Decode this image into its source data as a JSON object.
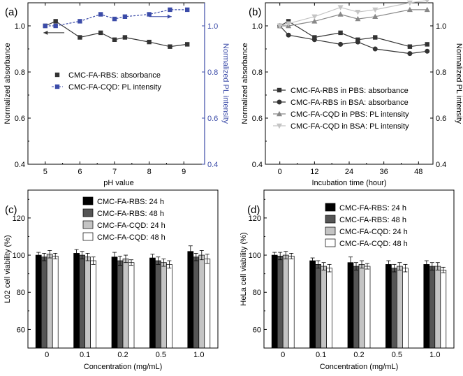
{
  "colors": {
    "axis": "#000000",
    "blue": "#3b4ba8",
    "dark": "#333333",
    "mid": "#5a5a5a",
    "gray": "#888888",
    "light": "#c4c4c4",
    "black_bar": "#000000",
    "darkgray_bar": "#555555",
    "lightgray_bar": "#c4c4c4",
    "white_bar": "#ffffff"
  },
  "chart_data": [
    {
      "id": "a",
      "type": "line",
      "panel_label": "(a)",
      "xlabel": "pH value",
      "ylabel": "Normalized absorbance",
      "ylabel_right": "Normalized PL intensity",
      "xlim": [
        4.5,
        9.6
      ],
      "ylim": [
        0.4,
        1.1
      ],
      "ylim_right": [
        0.4,
        1.1
      ],
      "xticks": [
        5,
        6,
        7,
        8,
        9
      ],
      "yticks": [
        0.4,
        0.6,
        0.8,
        1.0
      ],
      "yticks_right": [
        0.4,
        0.6,
        0.8,
        1.0
      ],
      "ytick_labels": [
        "0.4",
        "0.6",
        "0.8",
        "1.0"
      ],
      "ytick_labels_right": [
        "0.4",
        "0.6",
        "0.8",
        "1.0"
      ],
      "series": [
        {
          "name": "CMC-FA-RBS: absorbance",
          "axis": "left",
          "color": "dark",
          "style": "solid",
          "marker": "square-filled",
          "x": [
            5.0,
            5.3,
            6.0,
            6.6,
            7.0,
            7.3,
            8.0,
            8.6,
            9.1
          ],
          "y": [
            1.0,
            1.02,
            0.95,
            0.97,
            0.94,
            0.95,
            0.93,
            0.91,
            0.92
          ]
        },
        {
          "name": "CMC-FA-CQD: PL intensity",
          "axis": "right",
          "color": "blue",
          "style": "dashed",
          "marker": "square-filled",
          "x": [
            5.0,
            5.3,
            6.0,
            6.6,
            7.0,
            7.3,
            8.0,
            8.6,
            9.1
          ],
          "y": [
            1.0,
            1.0,
            1.02,
            1.05,
            1.03,
            1.04,
            1.05,
            1.07,
            1.07
          ]
        }
      ],
      "legend": "center"
    },
    {
      "id": "b",
      "type": "line",
      "panel_label": "(b)",
      "xlabel": "Incubation time (hour)",
      "ylabel": "Normalized absorbance",
      "ylabel_right": "Normalized PL intensity",
      "xlim": [
        -5,
        53
      ],
      "ylim": [
        0.4,
        1.1
      ],
      "ylim_right": [
        0.4,
        1.1
      ],
      "xticks": [
        0,
        12,
        24,
        36,
        48
      ],
      "yticks": [
        0.4,
        0.6,
        0.8,
        1.0
      ],
      "yticks_right": [
        0.4,
        0.6,
        0.8,
        1.0
      ],
      "ytick_labels": [
        "0.4",
        "0.6",
        "0.8",
        "1.0"
      ],
      "ytick_labels_right": [
        "0.4",
        "0.6",
        "0.8",
        "1.0"
      ],
      "series": [
        {
          "name": "CMC-FA-RBS in PBS: absorbance",
          "color": "dark",
          "marker": "square-filled",
          "x": [
            0,
            3,
            12,
            21,
            27,
            33,
            45,
            51
          ],
          "y": [
            1.0,
            1.02,
            0.95,
            0.97,
            0.94,
            0.95,
            0.91,
            0.92
          ]
        },
        {
          "name": "CMC-FA-RBS in BSA: absorbance",
          "color": "dark",
          "marker": "circle-filled",
          "x": [
            0,
            3,
            12,
            21,
            27,
            33,
            45,
            51
          ],
          "y": [
            1.0,
            0.96,
            0.94,
            0.92,
            0.93,
            0.9,
            0.88,
            0.89
          ]
        },
        {
          "name": "CMC-FA-CQD in PBS: PL intensity",
          "color": "gray",
          "marker": "triangle-up",
          "x": [
            0,
            3,
            12,
            21,
            27,
            33,
            45,
            51
          ],
          "y": [
            1.0,
            1.0,
            1.02,
            1.05,
            1.03,
            1.04,
            1.07,
            1.07
          ]
        },
        {
          "name": "CMC-FA-CQD in BSA: PL intensity",
          "color": "light",
          "marker": "triangle-down",
          "x": [
            0,
            3,
            12,
            21,
            27,
            33,
            45,
            51
          ],
          "y": [
            1.0,
            1.01,
            1.04,
            1.08,
            1.06,
            1.07,
            1.1,
            1.11
          ]
        }
      ],
      "legend": "center"
    },
    {
      "id": "c",
      "type": "bar",
      "panel_label": "(c)",
      "xlabel": "Concentration (mg/mL)",
      "ylabel": "L02 cell viability (%)",
      "ylim": [
        50,
        135
      ],
      "yticks": [
        60,
        80,
        100,
        120
      ],
      "categories": [
        "0",
        "0.1",
        "0.2",
        "0.5",
        "1.0"
      ],
      "series": [
        {
          "name": "CMC-FA-RBS: 24 h",
          "fill": "black_bar",
          "values": [
            100,
            101,
            99,
            98.5,
            102
          ],
          "errors": [
            1.5,
            2,
            2.5,
            2,
            3
          ]
        },
        {
          "name": "CMC-FA-RBS: 48 h",
          "fill": "darkgray_bar",
          "values": [
            99,
            100,
            97,
            97,
            99
          ],
          "errors": [
            2,
            2,
            2.5,
            2,
            2
          ]
        },
        {
          "name": "CMC-FA-CQD: 24 h",
          "fill": "lightgray_bar",
          "values": [
            100.5,
            99,
            98,
            96,
            100
          ],
          "errors": [
            2,
            2,
            2,
            2,
            2.5
          ]
        },
        {
          "name": "CMC-FA-CQD: 48 h",
          "fill": "white_bar",
          "values": [
            99.5,
            97,
            96,
            95,
            98
          ],
          "errors": [
            1.5,
            2,
            1.5,
            2,
            2.5
          ]
        }
      ],
      "legend": "top"
    },
    {
      "id": "d",
      "type": "bar",
      "panel_label": "(d)",
      "xlabel": "Concentration (mg/mL)",
      "ylabel": "HeLa cell viability (%)",
      "ylim": [
        50,
        135
      ],
      "yticks": [
        60,
        80,
        100,
        120
      ],
      "categories": [
        "0",
        "0.1",
        "0.2",
        "0.5",
        "1.0"
      ],
      "series": [
        {
          "name": "CMC-FA-RBS: 24 h",
          "fill": "black_bar",
          "values": [
            100,
            97,
            96,
            95,
            95
          ],
          "errors": [
            1.5,
            1.5,
            3,
            2,
            2
          ]
        },
        {
          "name": "CMC-FA-RBS: 48 h",
          "fill": "darkgray_bar",
          "values": [
            99.5,
            95,
            94,
            93,
            94
          ],
          "errors": [
            2,
            2,
            2,
            2,
            2
          ]
        },
        {
          "name": "CMC-FA-CQD: 24 h",
          "fill": "lightgray_bar",
          "values": [
            100,
            94,
            95,
            94,
            94
          ],
          "errors": [
            2,
            2,
            2,
            2,
            2
          ]
        },
        {
          "name": "CMC-FA-CQD: 48 h",
          "fill": "white_bar",
          "values": [
            99.5,
            93,
            94,
            93,
            92
          ],
          "errors": [
            1.5,
            2,
            1.5,
            2,
            1.5
          ]
        }
      ],
      "legend": "top"
    }
  ]
}
